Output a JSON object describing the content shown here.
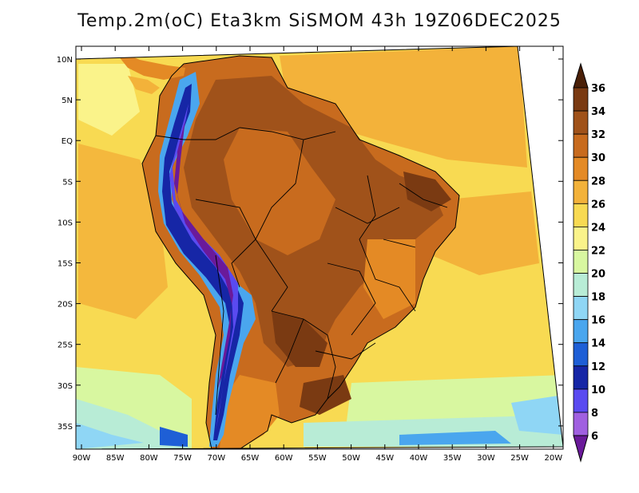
{
  "title": "Temp.2m(oC) Eta3km SiSMOM 43h 19Z06DEC2025",
  "axes": {
    "lat_labels": [
      "10N",
      "5N",
      "EQ",
      "5S",
      "10S",
      "15S",
      "20S",
      "25S",
      "30S",
      "35S"
    ],
    "lon_labels": [
      "90W",
      "85W",
      "80W",
      "75W",
      "70W",
      "65W",
      "60W",
      "55W",
      "50W",
      "45W",
      "40W",
      "35W",
      "30W",
      "25W",
      "20W"
    ]
  },
  "colorbar": {
    "labels": [
      "36",
      "34",
      "32",
      "30",
      "28",
      "26",
      "24",
      "22",
      "20",
      "18",
      "16",
      "14",
      "12",
      "10",
      "8",
      "6"
    ],
    "colors": [
      "#4a2008",
      "#7a3a12",
      "#a0521a",
      "#c86b1e",
      "#e48a25",
      "#f3b23a",
      "#f8da52",
      "#faf38a",
      "#d8f7a0",
      "#b8ecd6",
      "#8fd6f5",
      "#4aa6ee",
      "#1e5fd6",
      "#1626a6",
      "#5a4af0",
      "#a060e0",
      "#6a1a9a"
    ]
  }
}
